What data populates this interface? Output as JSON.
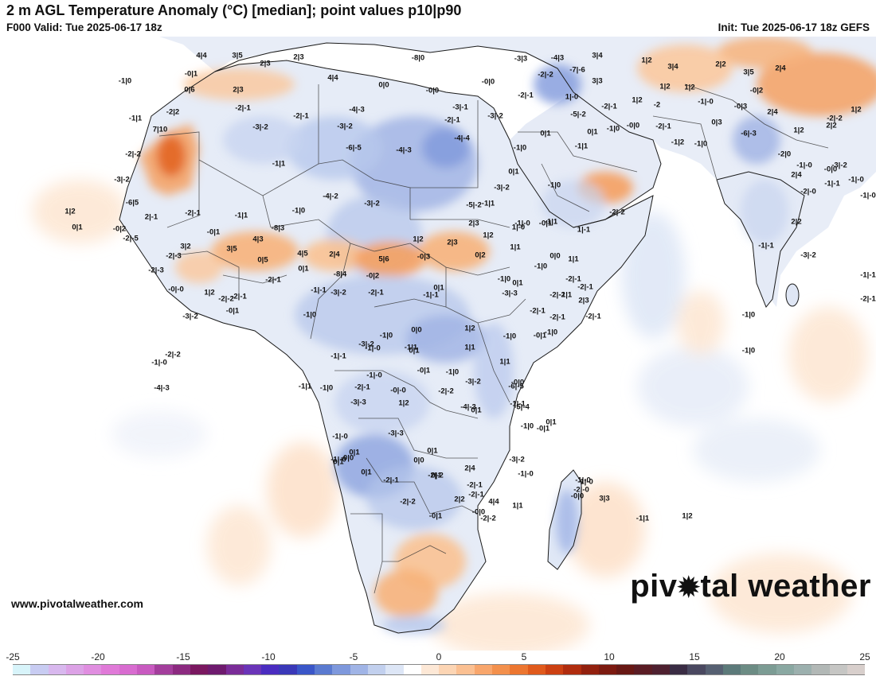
{
  "header": {
    "title": "2 m AGL Temperature Anomaly (°C) [median]; point values p10|p90",
    "valid": "F000 Valid: Tue 2025-06-17 18z",
    "init": "Init: Tue 2025-06-17 18z GEFS"
  },
  "footer": {
    "website": "www.pivotalweather.com",
    "logo_left": "piv",
    "logo_right": "tal weather"
  },
  "icons": {
    "logo_o": "gear-icon"
  },
  "colorbar": {
    "ticks": [
      "-25",
      "-20",
      "-15",
      "-10",
      "-5",
      "0",
      "5",
      "10",
      "15",
      "20",
      "25"
    ],
    "colors": [
      "#d8f4fa",
      "#c8ccf2",
      "#d8b8ee",
      "#dca2e6",
      "#e08ee0",
      "#e07ad8",
      "#d86cd0",
      "#c85ac0",
      "#a33e9c",
      "#8c2a80",
      "#7a1860",
      "#6e1a6e",
      "#7a2c98",
      "#6a34b8",
      "#4a2cc0",
      "#3a38b8",
      "#3a56c8",
      "#5a7ad0",
      "#7e98dc",
      "#a0b4e6",
      "#c2d0ee",
      "#dde6f6",
      "#ffffff",
      "#fde8d6",
      "#fcd5b4",
      "#fbc092",
      "#f8a66c",
      "#f3904c",
      "#ec7630",
      "#e05a1c",
      "#cc4012",
      "#b02c0e",
      "#92200e",
      "#7c1a10",
      "#681814",
      "#5a1c24",
      "#4e2030",
      "#3a2c44",
      "#4a4860",
      "#566072",
      "#5c7a7a",
      "#6c8c84",
      "#7c9c94",
      "#8aa8a2",
      "#9cb0ae",
      "#b2b8b6",
      "#c6c6c4",
      "#d8cfcc"
    ]
  },
  "point_values": [
    "4|4",
    "3|5",
    "2|3",
    "2|3",
    "-8|0",
    "-3|3",
    "-4|3",
    "3|4",
    "1|2",
    "3|4",
    "2|2",
    "3|5",
    "2|4",
    "-0|1",
    "2|3",
    "4|4",
    "0|0",
    "-0|0",
    "-2|-2",
    "-7|-6",
    "0|6",
    "-1|0",
    "-0|0",
    "3|3",
    "1|2",
    "1|2",
    "-0|2",
    "-2|-1",
    "-4|-3",
    "-3|-1",
    "-2|-1",
    "1|-0",
    "-2|-1",
    "1|2",
    "-2",
    "-1|-0",
    "-0|3",
    "1|2",
    "-1|1",
    "-2|2",
    "-3|-2",
    "-2|-1",
    "-3|-2",
    "-2|-1",
    "-3|-2",
    "-5|-2",
    "0|1",
    "-1|0",
    "-0|0",
    "-2|-1",
    "0|3",
    "-6|-3",
    "2|4",
    "1|2",
    "2|2",
    "-2|-2",
    "7|10",
    "-4|-3",
    "-6|-5",
    "-4|-4",
    "-1|0",
    "0|1",
    "-1|1",
    "-1|2",
    "-1|0",
    "-2|-2",
    "-1|1",
    "0|1",
    "-3|-2",
    "-1|0",
    "-2|0",
    "-1|-0",
    "-3|-2",
    "-3|-2",
    "-4|-2",
    "-3|-2",
    "-1|-0",
    "-1|-0",
    "2|4",
    "-2|-0",
    "-1|-1",
    "-0|0",
    "-6|5",
    "2|-1",
    "-1|1",
    "-1|0",
    "1|2",
    "-2|-1",
    "-5|-2",
    "-1|1",
    "-1|-0",
    "2|3",
    "-0|1",
    "1|-1",
    "-2|-2",
    "0|1",
    "-0|2",
    "-8|3",
    "-0|1",
    "1|2",
    "2|3",
    "1|2",
    "-1|1",
    "1|-0",
    "2|2",
    "-2|-3",
    "3|2",
    "4|3",
    "3|5",
    "-2|-5",
    "0|5",
    "4|5",
    "2|4",
    "5|6",
    "-0|3",
    "0|2",
    "1|1",
    "0|0",
    "-1|-1",
    "-2|-3",
    "0|1",
    "-8|4",
    "-0|2",
    "-1|0",
    "-1|0",
    "1|1",
    "0|1",
    "-1|1",
    "-3|-2",
    "-2|-1",
    "-1|-1",
    "-0|-0",
    "1|2",
    "-2|-1",
    "-0|1",
    "-2|-1",
    "-1|-1",
    "-3|-2",
    "-2|-1",
    "0|1",
    "-1|-1",
    "-3|-3",
    "-2|-1",
    "-2|-1",
    "-2|-1",
    "-1|0",
    "-1|0",
    "-3|-2",
    "-2|-2",
    "-1|0",
    "-1|0",
    "0|0",
    "-1|-0",
    "0|1",
    "1|1",
    "1|2",
    "-1|0",
    "-0|1",
    "-1|0",
    "2|3",
    "-2|-2",
    "-2|-1",
    "-2|-1",
    "-1|-0",
    "-2|-2",
    "-3|-2",
    "-1|1",
    "-1|-0",
    "-0|1",
    "-2|-1",
    "-1|0",
    "-1|-1",
    "-1|0",
    "1|1",
    "-0|0",
    "-1|-1",
    "-5|-4",
    "-4|-3",
    "-1|1",
    "-0|-0",
    "-3|-3",
    "1|2",
    "-2|-2",
    "-3|-2",
    "-6|-5",
    "-4|-3",
    "0|1",
    "-1|0",
    "-0|1",
    "0|1",
    "-0|0",
    "0|1",
    "0|1",
    "-2|-1",
    "0|0",
    "-2|-2",
    "2|4",
    "-2|-1",
    "-3|-2",
    "-1|-0",
    "-1|-0",
    "-2|-0",
    "-1|1",
    "-3|-3",
    "0|1",
    "0|1",
    "-2|-2",
    "0|1",
    "-0|1",
    "-2|-1",
    "4|4",
    "1|1",
    "-0|0",
    "-1|-0",
    "3|3",
    "1|2",
    "-0|0",
    "2|2",
    "-2|-2",
    "-1|-0",
    "-1|-0"
  ]
}
